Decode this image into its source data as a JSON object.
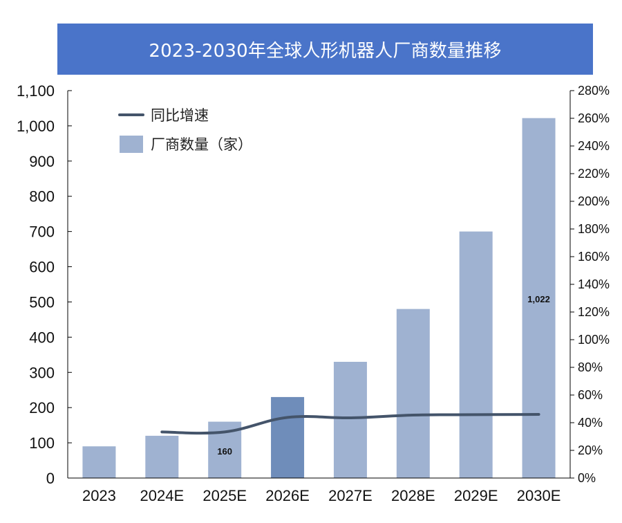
{
  "chart_data": {
    "type": "bar",
    "title": "2023-2030年全球人形机器人厂商数量推移",
    "categories": [
      "2023",
      "2024E",
      "2025E",
      "2026E",
      "2027E",
      "2028E",
      "2029E",
      "2030E"
    ],
    "series": [
      {
        "name": "厂商数量（家）",
        "type": "bar",
        "axis": "left",
        "values": [
          90,
          120,
          160,
          230,
          330,
          480,
          700,
          1022
        ]
      },
      {
        "name": "同比增速",
        "type": "line",
        "axis": "right",
        "values": [
          null,
          33.3,
          33.3,
          43.8,
          43.5,
          45.5,
          45.8,
          46.0
        ]
      }
    ],
    "highlight_index": 3,
    "data_labels": [
      {
        "index": 2,
        "text": "160"
      },
      {
        "index": 7,
        "text": "1,022"
      }
    ],
    "y_left": {
      "lim": [
        0,
        1100
      ],
      "ticks": [
        0,
        100,
        200,
        300,
        400,
        500,
        600,
        700,
        800,
        900,
        1000,
        1100
      ],
      "tick_labels": [
        "0",
        "100",
        "200",
        "300",
        "400",
        "500",
        "600",
        "700",
        "800",
        "900",
        "1,000",
        "1,100"
      ]
    },
    "y_right": {
      "lim": [
        0,
        280
      ],
      "ticks": [
        0,
        20,
        40,
        60,
        80,
        100,
        120,
        140,
        160,
        180,
        200,
        220,
        240,
        260,
        280
      ],
      "tick_labels": [
        "0%",
        "20%",
        "40%",
        "60%",
        "80%",
        "100%",
        "120%",
        "140%",
        "160%",
        "180%",
        "200%",
        "220%",
        "240%",
        "260%",
        "280%"
      ]
    },
    "legend_position": "top-left",
    "grid": false,
    "colors": {
      "bar": "#9fb2d1",
      "bar_highlight": "#6f8dba",
      "line": "#44546a",
      "title_bg": "#4a74c9"
    }
  }
}
